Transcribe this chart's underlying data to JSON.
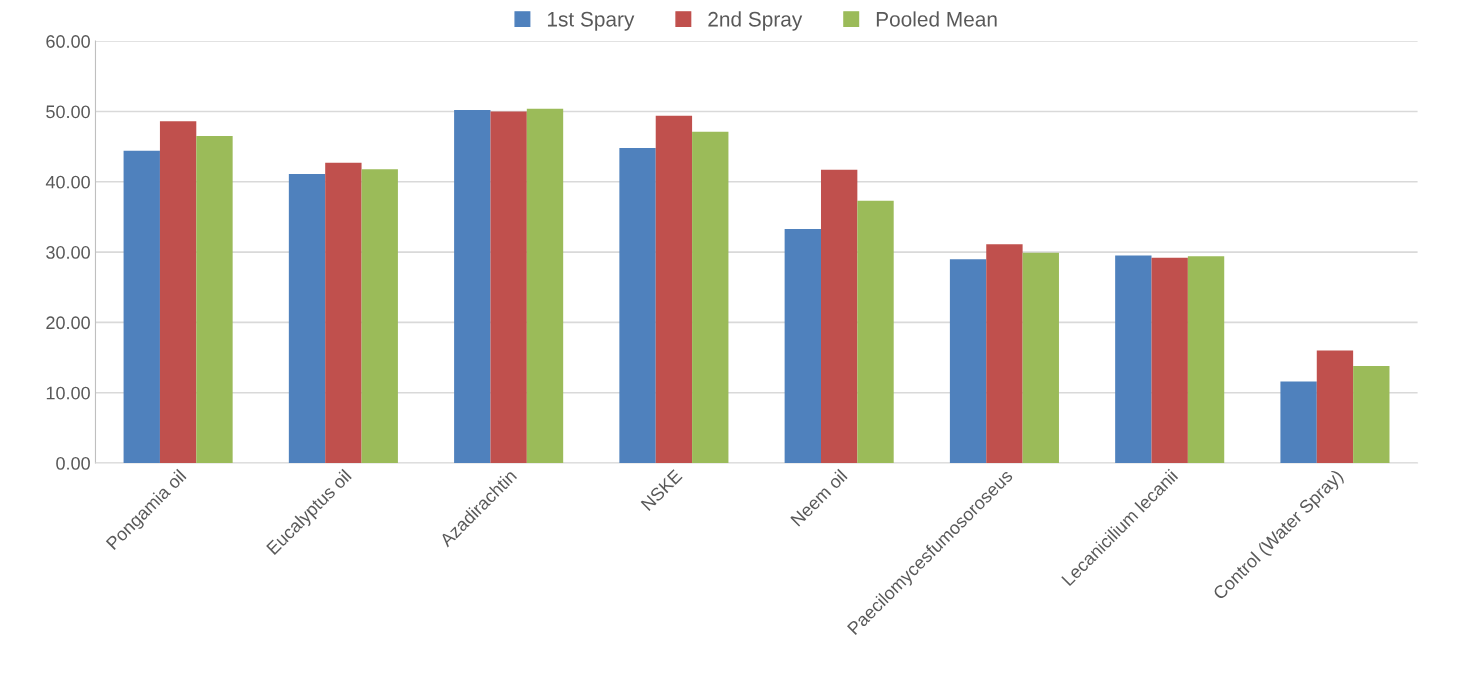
{
  "chart_data": {
    "type": "bar",
    "categories": [
      "Pongamia oil",
      "Eucalyptus oil",
      "Azadirachtin",
      "NSKE",
      "Neem oil",
      "Paecilomycesfumosoroseus",
      "Lecanicilium lecanii",
      "Control (Water Spray)"
    ],
    "series": [
      {
        "name": "1st Spary",
        "color": "#4f81bd",
        "values": [
          44.4,
          41.1,
          50.2,
          44.8,
          33.3,
          29.0,
          29.5,
          11.6
        ]
      },
      {
        "name": "2nd Spray",
        "color": "#c0504d",
        "values": [
          48.6,
          42.7,
          50.0,
          49.4,
          41.7,
          31.1,
          29.2,
          16.0
        ]
      },
      {
        "name": "Pooled Mean",
        "color": "#9bbb59",
        "values": [
          46.5,
          41.8,
          50.4,
          47.1,
          37.3,
          29.9,
          29.4,
          13.8
        ]
      }
    ],
    "ylim": [
      0,
      60
    ],
    "yticks": [
      {
        "value": 0,
        "label": "0.00"
      },
      {
        "value": 10,
        "label": "10.00"
      },
      {
        "value": 20,
        "label": "20.00"
      },
      {
        "value": 30,
        "label": "30.00"
      },
      {
        "value": 40,
        "label": "40.00"
      },
      {
        "value": 50,
        "label": "50.00"
      },
      {
        "value": 60,
        "label": "60.00"
      }
    ],
    "grid": "y",
    "legend": "top"
  }
}
